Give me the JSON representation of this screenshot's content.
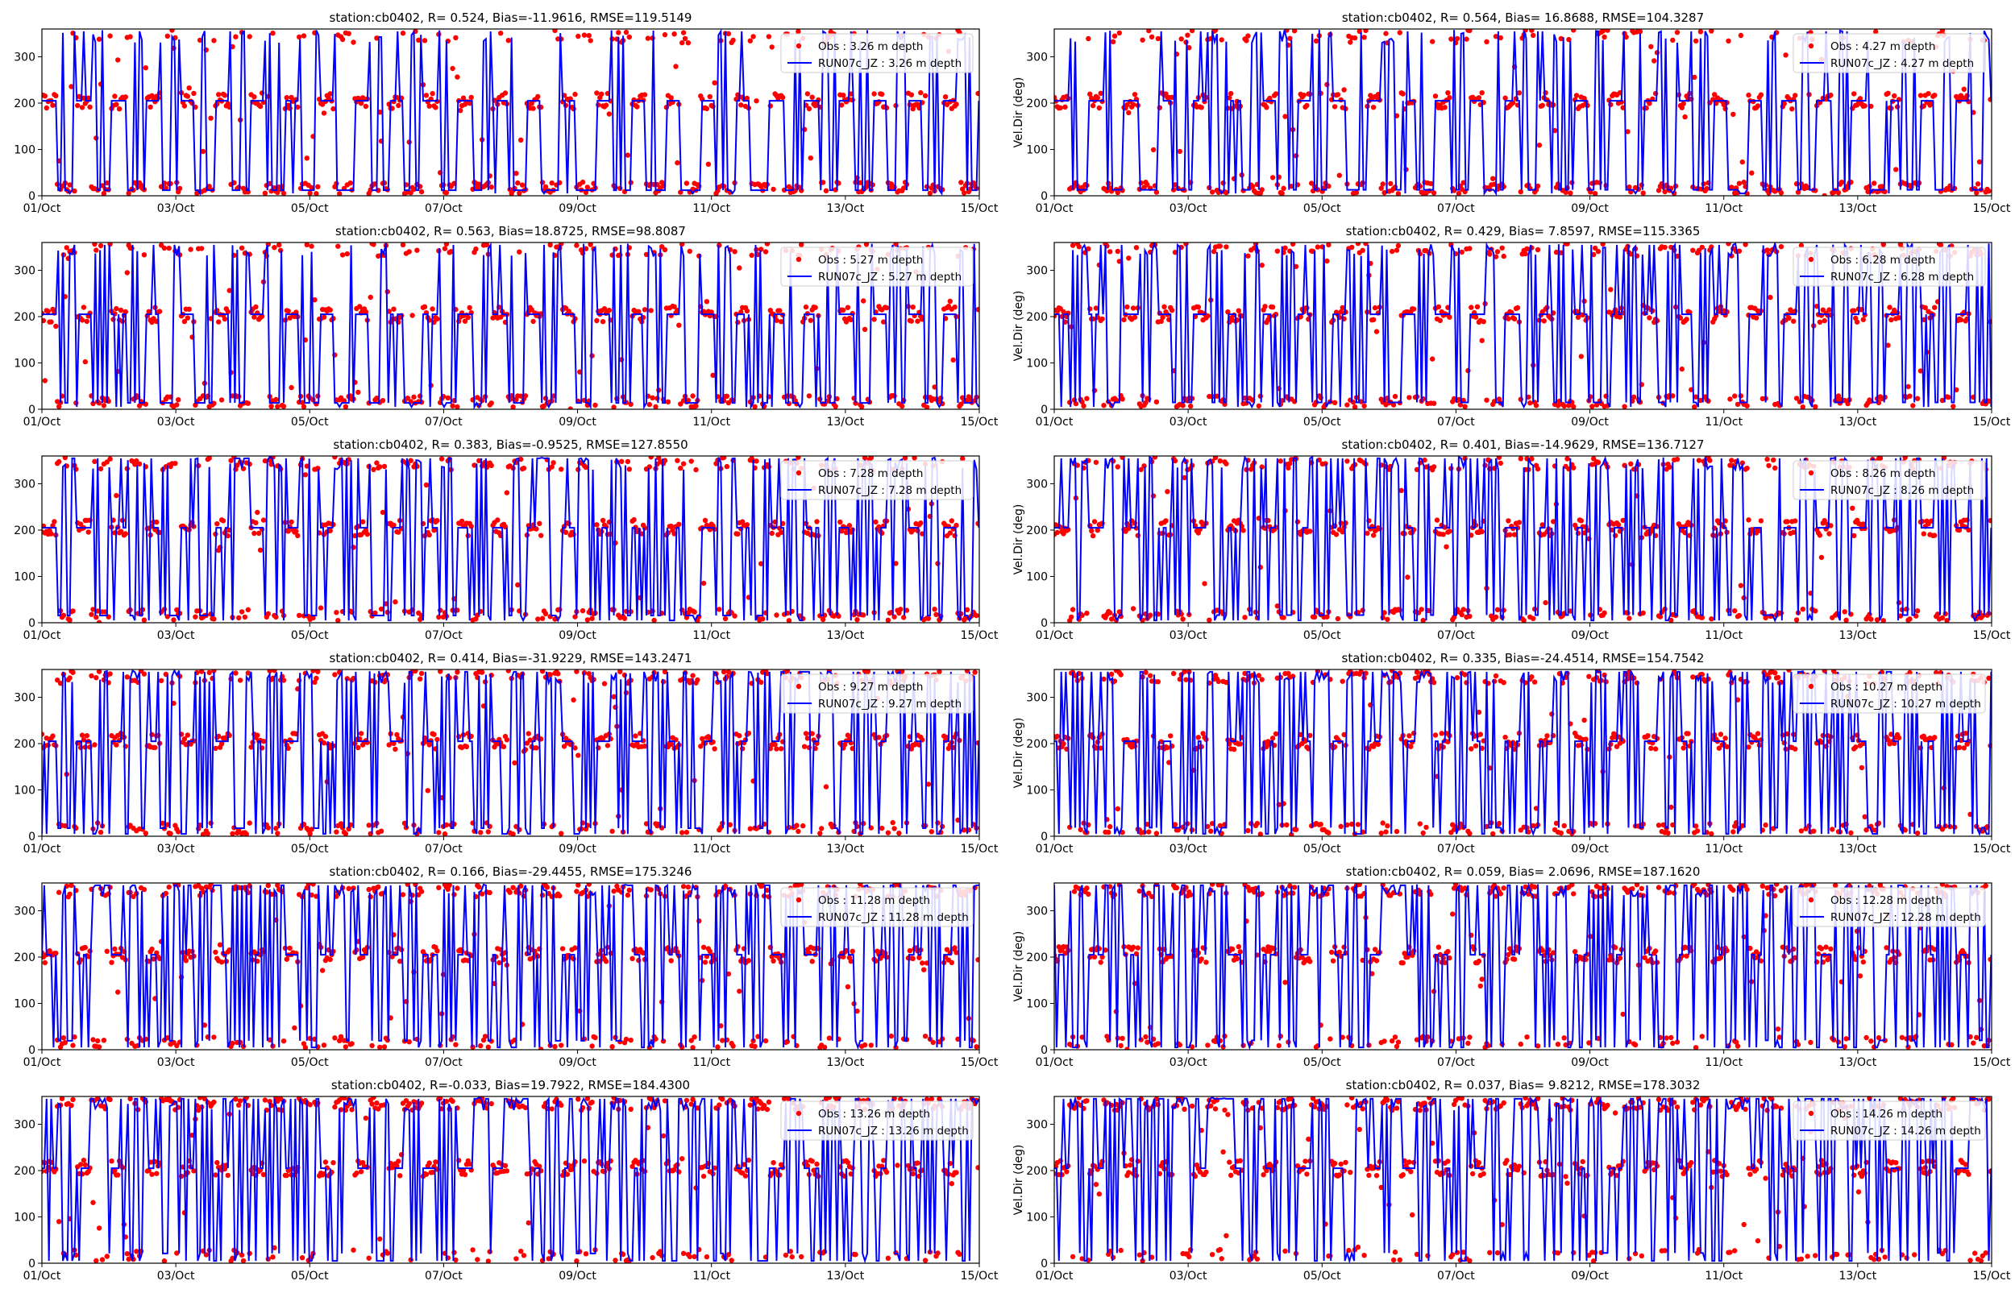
{
  "figure": {
    "x_ticks": [
      "01/Oct",
      "03/Oct",
      "05/Oct",
      "07/Oct",
      "09/Oct",
      "11/Oct",
      "13/Oct",
      "15/Oct"
    ],
    "y_ticks": [
      "0",
      "100",
      "200",
      "300"
    ],
    "colors": {
      "obs": "#ff0000",
      "model": "#0000ff",
      "axes": "#000000",
      "background": "#ffffff"
    }
  },
  "chart_data": [
    {
      "type": "line",
      "title": "station:cb0402, R= 0.524, Bias=-11.9616, RMSE=119.5149",
      "ylabel": "",
      "legend": [
        "Obs : 3.26 m depth",
        "RUN07c_JZ : 3.26 m depth"
      ],
      "legend_position": "top-right",
      "xlim": [
        "01/Oct",
        "15/Oct"
      ],
      "ylim": [
        0,
        360
      ],
      "depth_m": 3.26,
      "R": 0.524,
      "bias": -11.9616,
      "rmse": 119.5149,
      "series": [
        {
          "name": "Obs : 3.26 m depth",
          "values": []
        },
        {
          "name": "RUN07c_JZ : 3.26 m depth",
          "values": []
        }
      ]
    },
    {
      "type": "line",
      "title": "station:cb0402, R= 0.564, Bias= 16.8688, RMSE=104.3287",
      "ylabel": "Vel.Dir (deg)",
      "legend": [
        "Obs : 4.27 m depth",
        "RUN07c_JZ : 4.27 m depth"
      ],
      "legend_position": "top-right",
      "xlim": [
        "01/Oct",
        "15/Oct"
      ],
      "ylim": [
        0,
        360
      ],
      "depth_m": 4.27,
      "R": 0.564,
      "bias": 16.8688,
      "rmse": 104.3287,
      "series": [
        {
          "name": "Obs : 4.27 m depth",
          "values": []
        },
        {
          "name": "RUN07c_JZ : 4.27 m depth",
          "values": []
        }
      ]
    },
    {
      "type": "line",
      "title": "station:cb0402, R= 0.563, Bias=18.8725, RMSE=98.8087",
      "ylabel": "",
      "legend": [
        "Obs : 5.27 m depth",
        "RUN07c_JZ : 5.27 m depth"
      ],
      "legend_position": "top-right",
      "xlim": [
        "01/Oct",
        "15/Oct"
      ],
      "ylim": [
        0,
        360
      ],
      "depth_m": 5.27,
      "R": 0.563,
      "bias": 18.8725,
      "rmse": 98.8087,
      "series": [
        {
          "name": "Obs : 5.27 m depth",
          "values": []
        },
        {
          "name": "RUN07c_JZ : 5.27 m depth",
          "values": []
        }
      ]
    },
    {
      "type": "line",
      "title": "station:cb0402, R= 0.429, Bias= 7.8597, RMSE=115.3365",
      "ylabel": "Vel.Dir (deg)",
      "legend": [
        "Obs : 6.28 m depth",
        "RUN07c_JZ : 6.28 m depth"
      ],
      "legend_position": "top-right",
      "xlim": [
        "01/Oct",
        "15/Oct"
      ],
      "ylim": [
        0,
        360
      ],
      "depth_m": 6.28,
      "R": 0.429,
      "bias": 7.8597,
      "rmse": 115.3365,
      "series": [
        {
          "name": "Obs : 6.28 m depth",
          "values": []
        },
        {
          "name": "RUN07c_JZ : 6.28 m depth",
          "values": []
        }
      ]
    },
    {
      "type": "line",
      "title": "station:cb0402, R= 0.383, Bias=-0.9525, RMSE=127.8550",
      "ylabel": "",
      "legend": [
        "Obs : 7.28 m depth",
        "RUN07c_JZ : 7.28 m depth"
      ],
      "legend_position": "top-right",
      "xlim": [
        "01/Oct",
        "15/Oct"
      ],
      "ylim": [
        0,
        360
      ],
      "depth_m": 7.28,
      "R": 0.383,
      "bias": -0.9525,
      "rmse": 127.855,
      "series": [
        {
          "name": "Obs : 7.28 m depth",
          "values": []
        },
        {
          "name": "RUN07c_JZ : 7.28 m depth",
          "values": []
        }
      ]
    },
    {
      "type": "line",
      "title": "station:cb0402, R= 0.401, Bias=-14.9629, RMSE=136.7127",
      "ylabel": "Vel.Dir (deg)",
      "legend": [
        "Obs : 8.26 m depth",
        "RUN07c_JZ : 8.26 m depth"
      ],
      "legend_position": "top-right",
      "xlim": [
        "01/Oct",
        "15/Oct"
      ],
      "ylim": [
        0,
        360
      ],
      "depth_m": 8.26,
      "R": 0.401,
      "bias": -14.9629,
      "rmse": 136.7127,
      "series": [
        {
          "name": "Obs : 8.26 m depth",
          "values": []
        },
        {
          "name": "RUN07c_JZ : 8.26 m depth",
          "values": []
        }
      ]
    },
    {
      "type": "line",
      "title": "station:cb0402, R= 0.414, Bias=-31.9229, RMSE=143.2471",
      "ylabel": "",
      "legend": [
        "Obs : 9.27 m depth",
        "RUN07c_JZ : 9.27 m depth"
      ],
      "legend_position": "top-right",
      "xlim": [
        "01/Oct",
        "15/Oct"
      ],
      "ylim": [
        0,
        360
      ],
      "depth_m": 9.27,
      "R": 0.414,
      "bias": -31.9229,
      "rmse": 143.2471,
      "series": [
        {
          "name": "Obs : 9.27 m depth",
          "values": []
        },
        {
          "name": "RUN07c_JZ : 9.27 m depth",
          "values": []
        }
      ]
    },
    {
      "type": "line",
      "title": "station:cb0402, R= 0.335, Bias=-24.4514, RMSE=154.7542",
      "ylabel": "Vel.Dir (deg)",
      "legend": [
        "Obs : 10.27 m depth",
        "RUN07c_JZ : 10.27 m depth"
      ],
      "legend_position": "top-right",
      "xlim": [
        "01/Oct",
        "15/Oct"
      ],
      "ylim": [
        0,
        360
      ],
      "depth_m": 10.27,
      "R": 0.335,
      "bias": -24.4514,
      "rmse": 154.7542,
      "series": [
        {
          "name": "Obs : 10.27 m depth",
          "values": []
        },
        {
          "name": "RUN07c_JZ : 10.27 m depth",
          "values": []
        }
      ]
    },
    {
      "type": "line",
      "title": "station:cb0402, R= 0.166, Bias=-29.4455, RMSE=175.3246",
      "ylabel": "",
      "legend": [
        "Obs : 11.28 m depth",
        "RUN07c_JZ : 11.28 m depth"
      ],
      "legend_position": "top-right",
      "xlim": [
        "01/Oct",
        "15/Oct"
      ],
      "ylim": [
        0,
        360
      ],
      "depth_m": 11.28,
      "R": 0.166,
      "bias": -29.4455,
      "rmse": 175.3246,
      "series": [
        {
          "name": "Obs : 11.28 m depth",
          "values": []
        },
        {
          "name": "RUN07c_JZ : 11.28 m depth",
          "values": []
        }
      ]
    },
    {
      "type": "line",
      "title": "station:cb0402, R= 0.059, Bias= 2.0696, RMSE=187.1620",
      "ylabel": "Vel.Dir (deg)",
      "legend": [
        "Obs : 12.28 m depth",
        "RUN07c_JZ : 12.28 m depth"
      ],
      "legend_position": "top-right",
      "xlim": [
        "01/Oct",
        "15/Oct"
      ],
      "ylim": [
        0,
        360
      ],
      "depth_m": 12.28,
      "R": 0.059,
      "bias": 2.0696,
      "rmse": 187.162,
      "series": [
        {
          "name": "Obs : 12.28 m depth",
          "values": []
        },
        {
          "name": "RUN07c_JZ : 12.28 m depth",
          "values": []
        }
      ]
    },
    {
      "type": "line",
      "title": "station:cb0402, R=-0.033, Bias=19.7922, RMSE=184.4300",
      "ylabel": "",
      "legend": [
        "Obs : 13.26 m depth",
        "RUN07c_JZ : 13.26 m depth"
      ],
      "legend_position": "top-right",
      "xlim": [
        "01/Oct",
        "15/Oct"
      ],
      "ylim": [
        0,
        360
      ],
      "depth_m": 13.26,
      "R": -0.033,
      "bias": 19.7922,
      "rmse": 184.43,
      "series": [
        {
          "name": "Obs : 13.26 m depth",
          "values": []
        },
        {
          "name": "RUN07c_JZ : 13.26 m depth",
          "values": []
        }
      ]
    },
    {
      "type": "line",
      "title": "station:cb0402, R= 0.037, Bias= 9.8212, RMSE=178.3032",
      "ylabel": "Vel.Dir (deg)",
      "legend": [
        "Obs : 14.26 m depth",
        "RUN07c_JZ : 14.26 m depth"
      ],
      "legend_position": "top-right",
      "xlim": [
        "01/Oct",
        "15/Oct"
      ],
      "ylim": [
        0,
        360
      ],
      "depth_m": 14.26,
      "R": 0.037,
      "bias": 9.8212,
      "rmse": 178.3032,
      "series": [
        {
          "name": "Obs : 14.26 m depth",
          "values": []
        },
        {
          "name": "RUN07c_JZ : 14.26 m depth",
          "values": []
        }
      ]
    }
  ]
}
